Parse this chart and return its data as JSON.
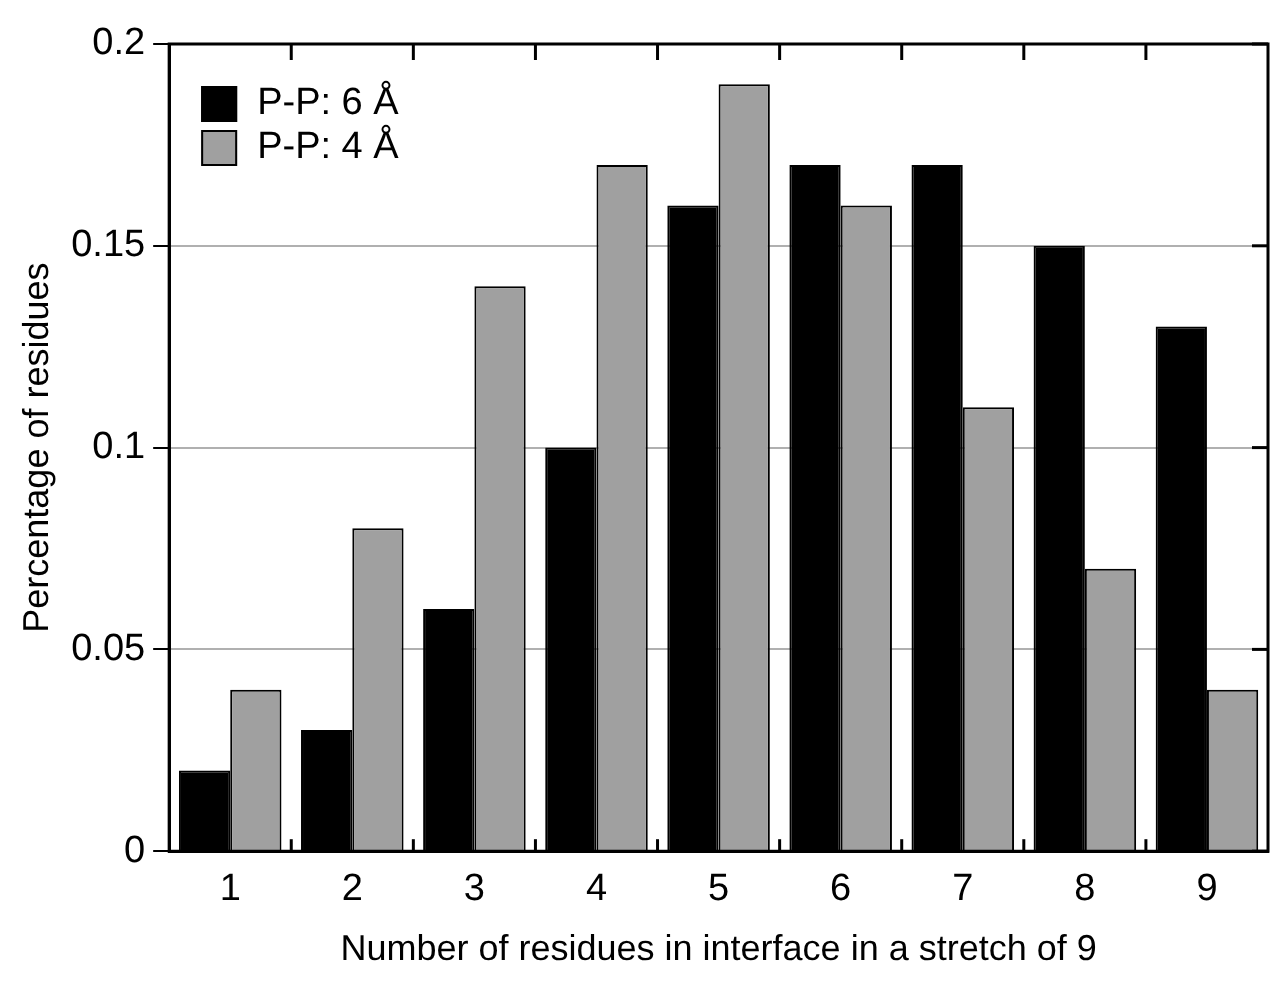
{
  "chart_data": {
    "type": "bar",
    "xlabel": "Number of residues in interface in a stretch of 9",
    "ylabel": "Percentage of residues",
    "categories": [
      "1",
      "2",
      "3",
      "4",
      "5",
      "6",
      "7",
      "8",
      "9"
    ],
    "series": [
      {
        "name": "P-P: 6 Å",
        "color": "#000000",
        "values": [
          0.02,
          0.03,
          0.06,
          0.1,
          0.16,
          0.17,
          0.17,
          0.15,
          0.13
        ]
      },
      {
        "name": "P-P: 4 Å",
        "color": "#a0a0a0",
        "values": [
          0.04,
          0.08,
          0.14,
          0.17,
          0.19,
          0.16,
          0.11,
          0.07,
          0.04
        ]
      }
    ],
    "ylim": [
      0,
      0.2
    ],
    "yticks": [
      0,
      0.05,
      0.1,
      0.15,
      0.2
    ],
    "grid": "y",
    "legend": "top left"
  }
}
